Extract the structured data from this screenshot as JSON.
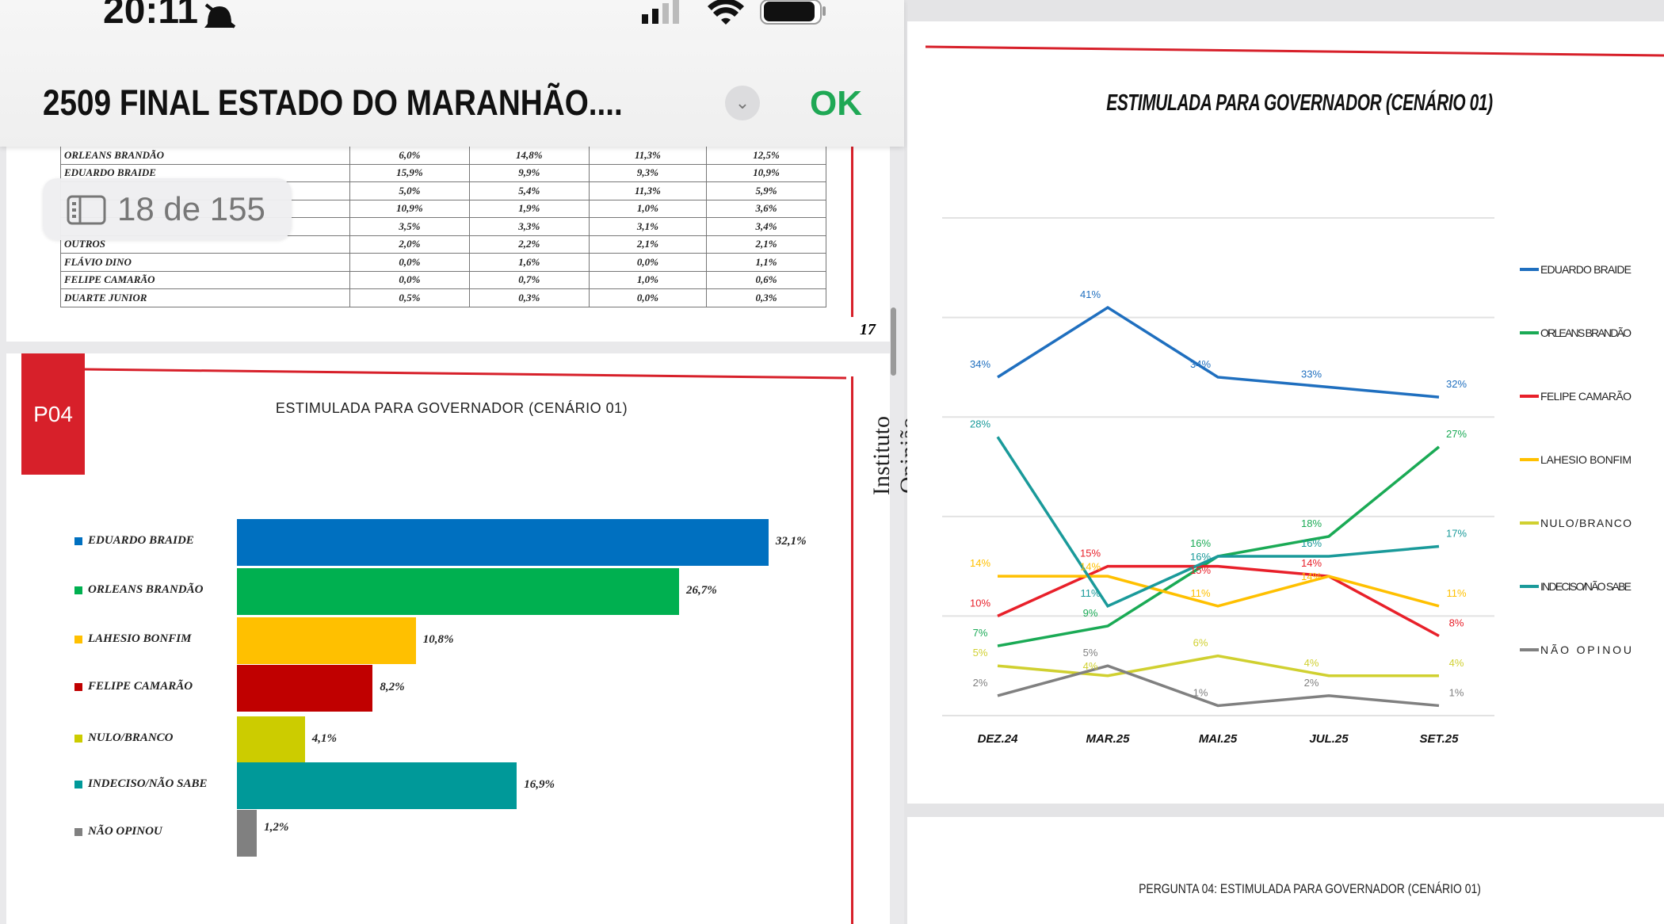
{
  "status_bar": {
    "time": "20:11",
    "icons": [
      "bell-slash-icon",
      "signal-icon",
      "wifi-icon",
      "battery-icon"
    ]
  },
  "header": {
    "title": "2509 FINAL ESTADO DO MARANHÃO....",
    "ok_label": "OK"
  },
  "page_indicator": "18 de 155",
  "table": {
    "rows": [
      {
        "name": "ORLEANS BRANDÃO",
        "values": [
          "6,0%",
          "14,8%",
          "11,3%",
          "12,5%"
        ]
      },
      {
        "name": "EDUARDO BRAIDE",
        "values": [
          "15,9%",
          "9,9%",
          "9,3%",
          "10,9%"
        ]
      },
      {
        "name": "",
        "values": [
          "5,0%",
          "5,4%",
          "11,3%",
          "5,9%"
        ]
      },
      {
        "name": "",
        "values": [
          "10,9%",
          "1,9%",
          "1,0%",
          "3,6%"
        ]
      },
      {
        "name": "",
        "values": [
          "3,5%",
          "3,3%",
          "3,1%",
          "3,4%"
        ]
      },
      {
        "name": "OUTROS",
        "values": [
          "2,0%",
          "2,2%",
          "2,1%",
          "2,1%"
        ]
      },
      {
        "name": "FLÁVIO DINO",
        "values": [
          "0,0%",
          "1,6%",
          "0,0%",
          "1,1%"
        ]
      },
      {
        "name": "FELIPE CAMARÃO",
        "values": [
          "0,0%",
          "0,7%",
          "1,0%",
          "0,6%"
        ]
      },
      {
        "name": "DUARTE JUNIOR",
        "values": [
          "0,5%",
          "0,3%",
          "0,0%",
          "0,3%"
        ]
      }
    ],
    "page_number": "17"
  },
  "page18": {
    "tag": "P04",
    "brand": "Instituto Opinião"
  },
  "chart_data": [
    {
      "type": "bar",
      "title": "ESTIMULADA PARA GOVERNADOR (CENÁRIO 01)",
      "categories": [
        "EDUARDO BRAIDE",
        "ORLEANS BRANDÃO",
        "LAHESIO BONFIM",
        "FELIPE CAMARÃO",
        "NULO/BRANCO",
        "INDECISO/NÃO SABE",
        "NÃO OPINOU"
      ],
      "values": [
        32.1,
        26.7,
        10.8,
        8.2,
        4.1,
        16.9,
        1.2
      ],
      "labels": [
        "32,1%",
        "26,7%",
        "10,8%",
        "8,2%",
        "4,1%",
        "16,9%",
        "1,2%"
      ],
      "colors": [
        "#0070c0",
        "#00b050",
        "#ffc000",
        "#c00000",
        "#cccc00",
        "#009999",
        "#808080"
      ],
      "xlabel": "",
      "ylabel": ""
    },
    {
      "type": "line",
      "title": "ESTIMULADA PARA GOVERNADOR (CENÁRIO 01)",
      "x": [
        "DEZ.24",
        "MAR.25",
        "MAI.25",
        "JUL.25",
        "SET.25"
      ],
      "ylim": [
        0,
        50
      ],
      "grid": true,
      "legend": "right",
      "series": [
        {
          "name": "EDUARDO BRAIDE",
          "color": "#1f6fbf",
          "values": [
            34,
            41,
            34,
            33,
            32
          ]
        },
        {
          "name": "ORLEANS BRANDÃO",
          "color": "#1aaa55",
          "values": [
            7,
            9,
            16,
            18,
            27
          ]
        },
        {
          "name": "FELIPE CAMARÃO",
          "color": "#e8202a",
          "values": [
            10,
            15,
            15,
            14,
            8
          ]
        },
        {
          "name": "LAHESIO BONFIM",
          "color": "#ffc000",
          "values": [
            14,
            14,
            11,
            14,
            11
          ]
        },
        {
          "name": "NULO/BRANCO",
          "color": "#d0d030",
          "values": [
            5,
            4,
            6,
            4,
            4
          ]
        },
        {
          "name": "INDECISO/NÃO SABE",
          "color": "#1a9a9a",
          "values": [
            28,
            11,
            16,
            16,
            17
          ]
        },
        {
          "name": "NÃO OPINOU",
          "color": "#808080",
          "values": [
            2,
            5,
            1,
            2,
            1
          ]
        }
      ]
    }
  ],
  "bottom_page": {
    "caption": "PERGUNTA 04: ESTIMULADA PARA GOVERNADOR (CENÁRIO 01)"
  }
}
